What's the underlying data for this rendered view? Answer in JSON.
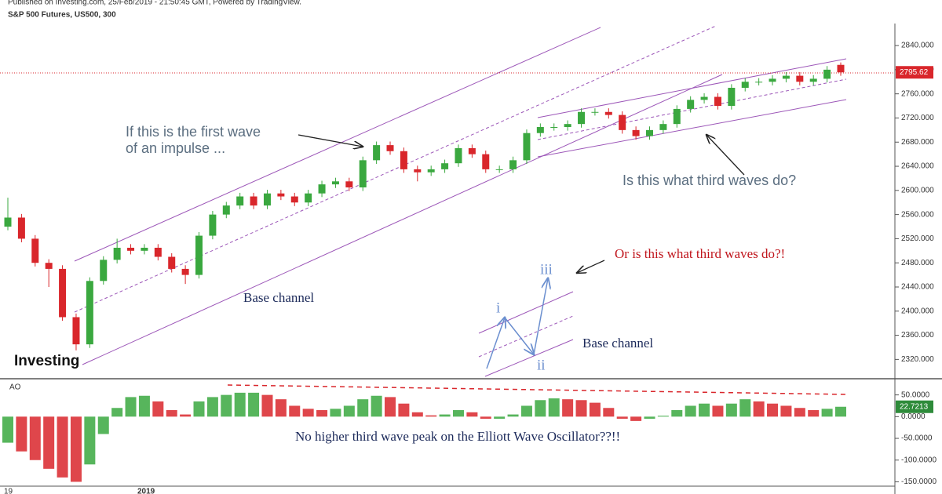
{
  "chart_data": {
    "type": "candlestick",
    "header": "Published on Investing.com, 25/Feb/2019 - 21:50:45 GMT, Powered by TradingView.",
    "title": "S&P 500 Futures, US500, 300",
    "logo": "Investing",
    "up_color": "#3aa83f",
    "down_color": "#d9262b",
    "open": [
      2540,
      2555,
      2520,
      2480,
      2470,
      2390,
      2345,
      2450,
      2485,
      2505,
      2500,
      2505,
      2490,
      2470,
      2460,
      2525,
      2560,
      2575,
      2590,
      2575,
      2595,
      2590,
      2580,
      2595,
      2610,
      2615,
      2605,
      2650,
      2675,
      2665,
      2635,
      2630,
      2635,
      2645,
      2670,
      2660,
      2635,
      2635,
      2650,
      2695,
      2705,
      2705,
      2710,
      2730,
      2730,
      2725,
      2700,
      2690,
      2700,
      2710,
      2735,
      2750,
      2755,
      2740,
      2770,
      2780,
      2780,
      2785,
      2790,
      2780,
      2785,
      2808
    ],
    "high": [
      2588,
      2561,
      2526,
      2486,
      2476,
      2396,
      2456,
      2491,
      2520,
      2511,
      2511,
      2511,
      2496,
      2476,
      2531,
      2566,
      2581,
      2596,
      2596,
      2601,
      2601,
      2596,
      2601,
      2616,
      2621,
      2621,
      2656,
      2681,
      2681,
      2671,
      2641,
      2641,
      2651,
      2676,
      2676,
      2666,
      2641,
      2656,
      2701,
      2711,
      2711,
      2716,
      2736,
      2736,
      2736,
      2731,
      2706,
      2706,
      2716,
      2741,
      2756,
      2761,
      2761,
      2776,
      2786,
      2786,
      2791,
      2796,
      2796,
      2791,
      2806,
      2812
    ],
    "low": [
      2534,
      2514,
      2474,
      2440,
      2384,
      2335,
      2339,
      2444,
      2479,
      2494,
      2494,
      2484,
      2464,
      2445,
      2454,
      2519,
      2554,
      2569,
      2569,
      2569,
      2584,
      2574,
      2574,
      2589,
      2604,
      2599,
      2599,
      2644,
      2659,
      2629,
      2615,
      2624,
      2629,
      2639,
      2654,
      2629,
      2629,
      2629,
      2644,
      2689,
      2699,
      2699,
      2704,
      2724,
      2719,
      2694,
      2684,
      2684,
      2694,
      2704,
      2729,
      2744,
      2734,
      2734,
      2764,
      2774,
      2774,
      2779,
      2774,
      2774,
      2779,
      2790
    ],
    "close": [
      2555,
      2520,
      2480,
      2470,
      2390,
      2345,
      2450,
      2485,
      2505,
      2500,
      2505,
      2490,
      2470,
      2460,
      2525,
      2560,
      2575,
      2590,
      2575,
      2595,
      2590,
      2580,
      2595,
      2610,
      2615,
      2605,
      2650,
      2675,
      2665,
      2635,
      2630,
      2635,
      2645,
      2670,
      2660,
      2635,
      2635,
      2650,
      2695,
      2705,
      2705,
      2710,
      2730,
      2730,
      2725,
      2700,
      2690,
      2700,
      2710,
      2735,
      2750,
      2755,
      2740,
      2770,
      2780,
      2780,
      2785,
      2790,
      2780,
      2785,
      2800,
      2795.62
    ],
    "last_price_label": "2795.62",
    "ylim": [
      2288,
      2870
    ],
    "yticks": [
      {
        "value": 2320,
        "label": "2320.000"
      },
      {
        "value": 2360,
        "label": "2360.000"
      },
      {
        "value": 2400,
        "label": "2400.000"
      },
      {
        "value": 2440,
        "label": "2440.000"
      },
      {
        "value": 2480,
        "label": "2480.000"
      },
      {
        "value": 2520,
        "label": "2520.000"
      },
      {
        "value": 2560,
        "label": "2560.000"
      },
      {
        "value": 2600,
        "label": "2600.000"
      },
      {
        "value": 2640,
        "label": "2640.000"
      },
      {
        "value": 2680,
        "label": "2680.000"
      },
      {
        "value": 2720,
        "label": "2720.000"
      },
      {
        "value": 2760,
        "label": "2760.000"
      },
      {
        "value": 2800,
        "label": "2800.000"
      },
      {
        "value": 2840,
        "label": "2840.000"
      }
    ],
    "xtick_labels": [
      "19",
      "2019"
    ],
    "oscillator": {
      "name": "AO",
      "values": [
        -60,
        -80,
        -100,
        -120,
        -140,
        -150,
        -110,
        -40,
        20,
        45,
        48,
        35,
        15,
        5,
        35,
        45,
        50,
        55,
        55,
        50,
        40,
        25,
        18,
        15,
        18,
        25,
        40,
        48,
        45,
        30,
        10,
        3,
        5,
        15,
        10,
        -5,
        -5,
        5,
        25,
        38,
        42,
        40,
        38,
        32,
        20,
        -5,
        -10,
        -5,
        2,
        15,
        25,
        30,
        25,
        30,
        40,
        35,
        30,
        25,
        20,
        15,
        18,
        22.7213
      ],
      "last_label": "22.7213",
      "ylim": [
        -160,
        80
      ],
      "yticks": [
        {
          "value": 50,
          "label": "50.0000"
        },
        {
          "value": 0,
          "label": "0.0000"
        },
        {
          "value": -50,
          "label": "-50.0000"
        },
        {
          "value": -100,
          "label": "-100.0000"
        },
        {
          "value": -150,
          "label": "-150.0000"
        }
      ]
    },
    "annotations": [
      "If this is the first wave",
      "of an impulse ...",
      "Is this what third waves do?",
      "Or is this what third waves do?!",
      "Base channel",
      "Base channel",
      "i",
      "ii",
      "iii",
      "No higher third wave peak on the Elliott Wave Oscillator??!!"
    ]
  }
}
